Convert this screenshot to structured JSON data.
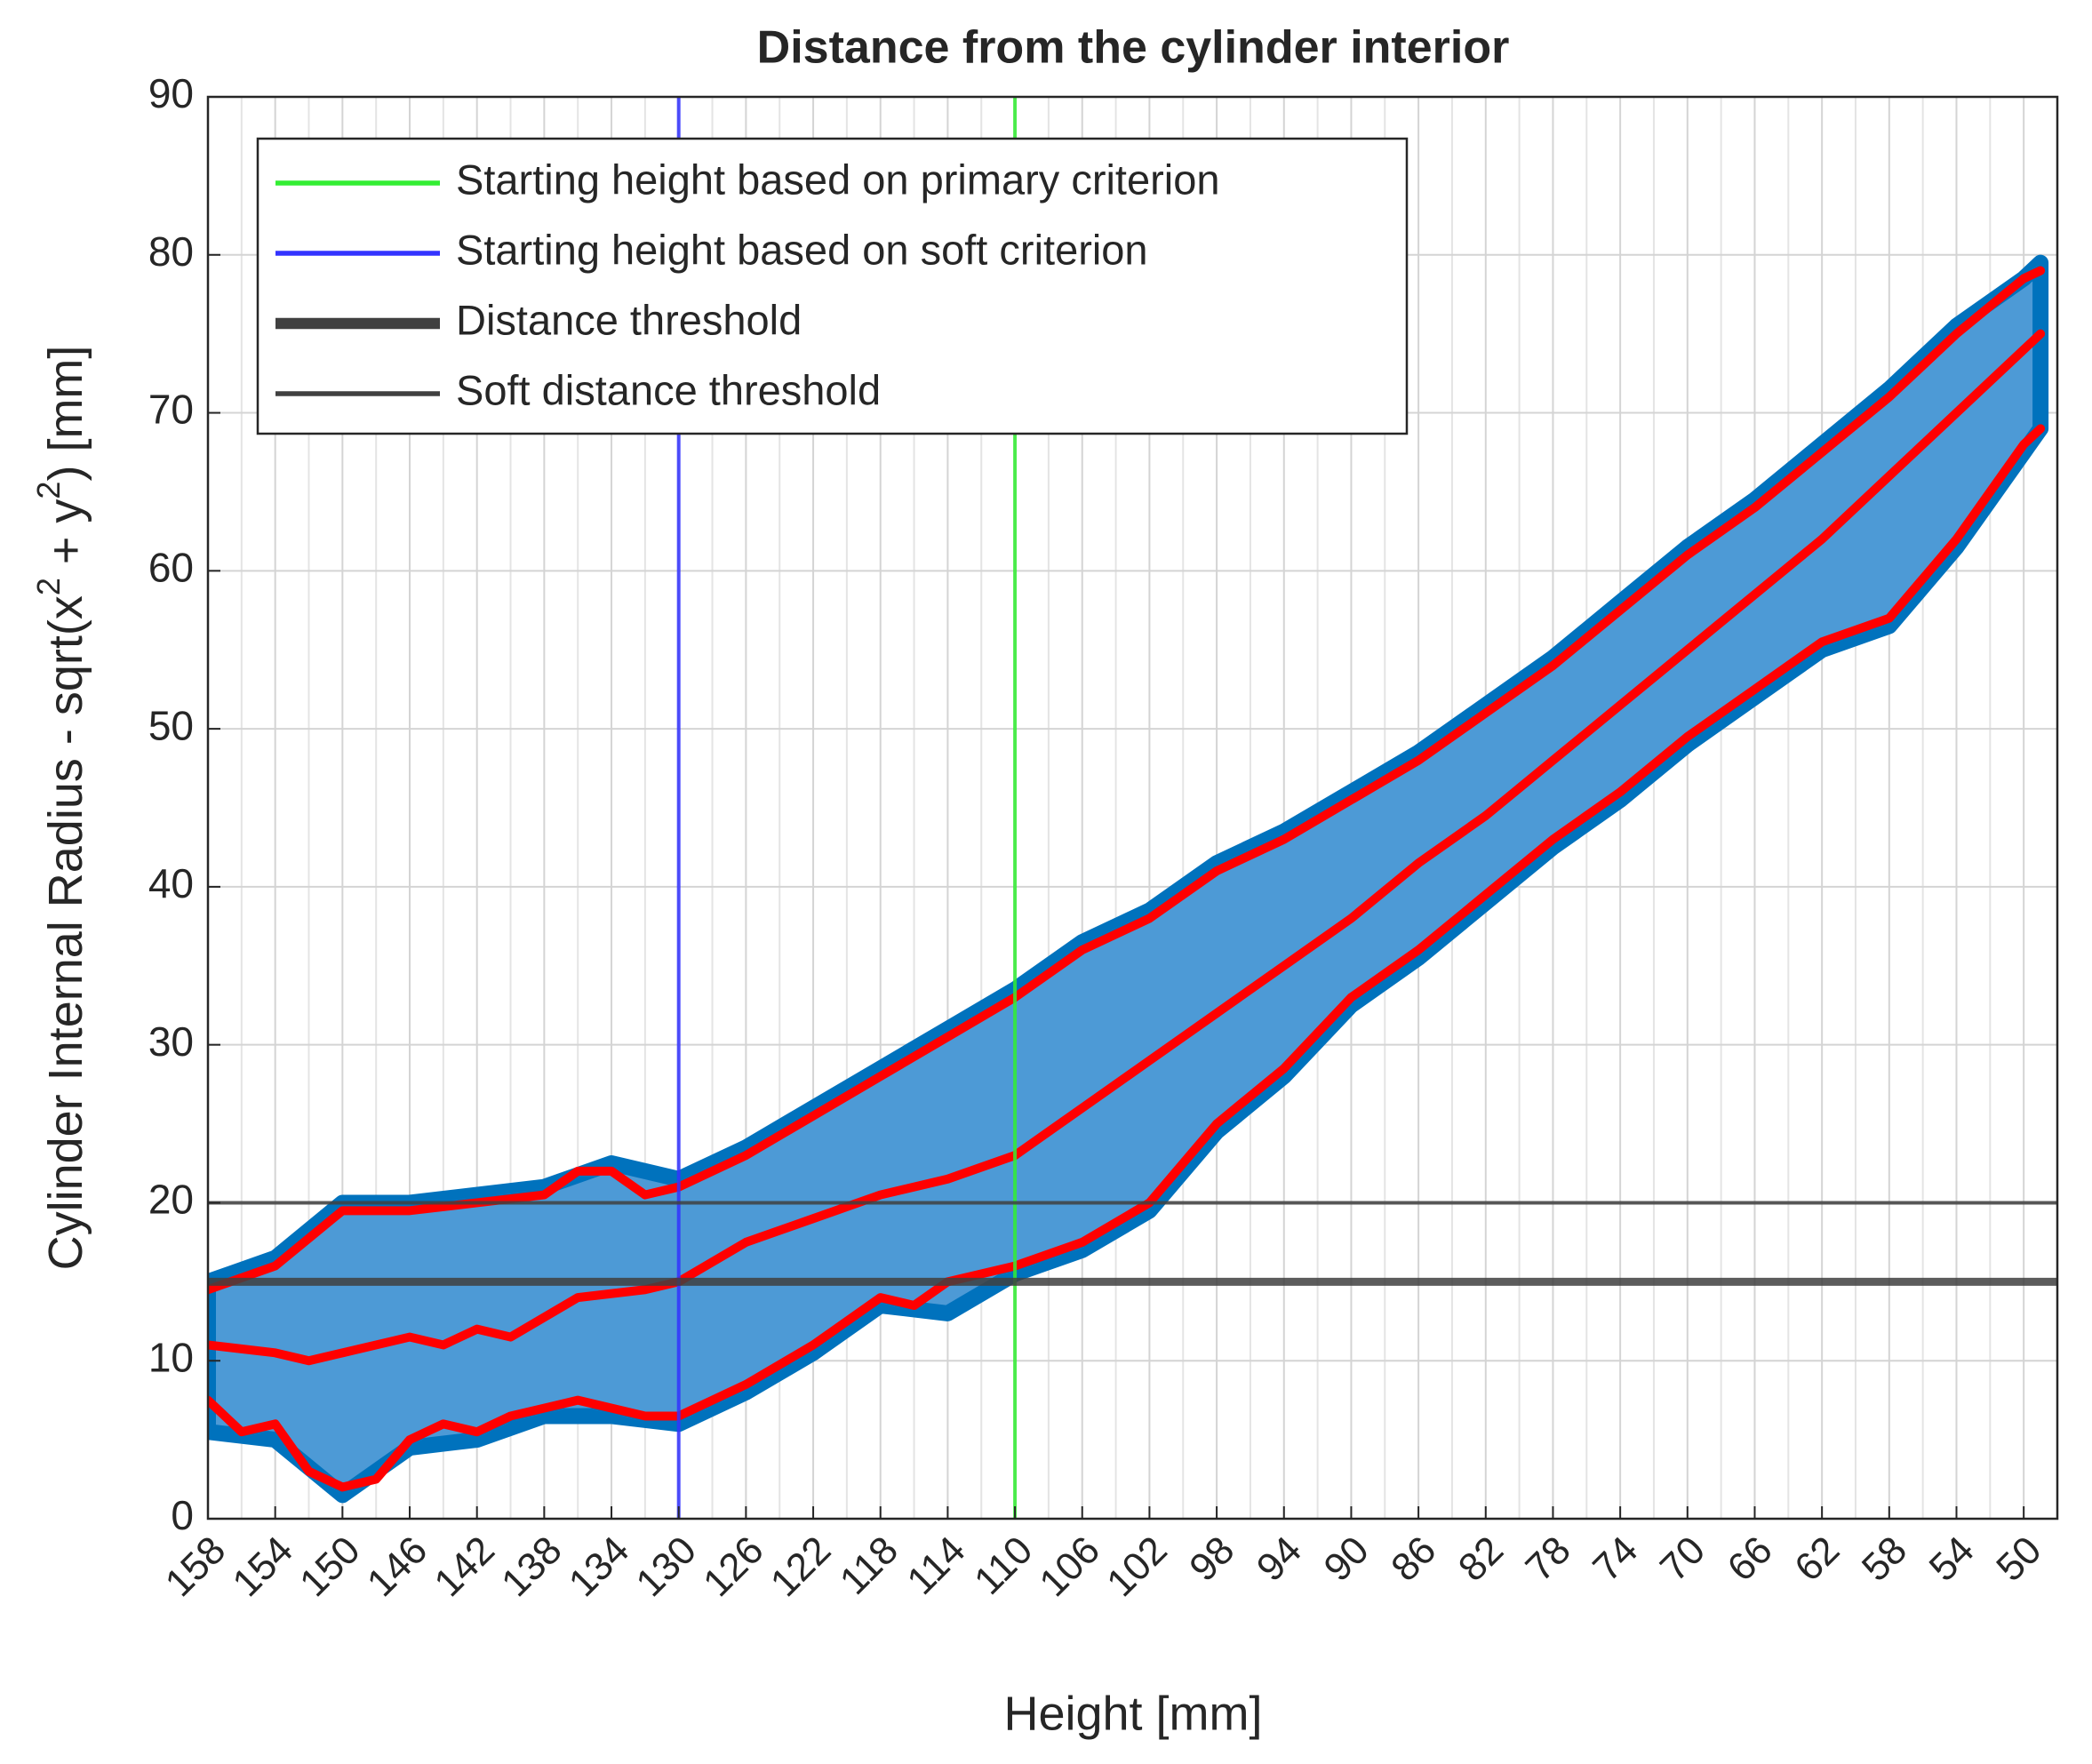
{
  "chart_data": {
    "type": "scatter",
    "title": "Distance from the cylinder interior",
    "xlabel": "Height [mm]",
    "ylabel_parts": [
      "Cylinder Internal Radius - sqrt(x",
      "2",
      " + y",
      "2",
      ") [mm]"
    ],
    "xlim": [
      158,
      48
    ],
    "ylim": [
      0,
      90
    ],
    "xticks": [
      158,
      154,
      150,
      146,
      142,
      138,
      134,
      130,
      126,
      122,
      118,
      114,
      110,
      106,
      102,
      98,
      94,
      90,
      86,
      82,
      78,
      74,
      70,
      66,
      62,
      58,
      54,
      50
    ],
    "yticks": [
      0,
      10,
      20,
      30,
      40,
      50,
      60,
      70,
      80,
      90
    ],
    "grid": true,
    "minor_grid_x": true,
    "legend": "northwest",
    "band": {
      "color": "#0072bd",
      "x": [
        158,
        154,
        150,
        146,
        142,
        138,
        134,
        130,
        126,
        122,
        118,
        114,
        110,
        106,
        102,
        98,
        94,
        90,
        86,
        82,
        78,
        74,
        70,
        66,
        62,
        58,
        54,
        50,
        49
      ],
      "lower": [
        5.5,
        5,
        1.5,
        4.5,
        5,
        6.5,
        6.5,
        6,
        8,
        10.5,
        13.5,
        13,
        15.5,
        17,
        19.5,
        24.5,
        28,
        32.5,
        35.5,
        39,
        42.5,
        45.5,
        49,
        52,
        55,
        56.5,
        61.5,
        67.5,
        69
      ],
      "upper": [
        15,
        16.5,
        20,
        20,
        20.5,
        21,
        22.5,
        21.5,
        23.5,
        26,
        28.5,
        31,
        33.5,
        36.5,
        38.5,
        41.5,
        43.5,
        46,
        48.5,
        51.5,
        54.5,
        58,
        61.5,
        64.5,
        68,
        71.5,
        75.5,
        78.5,
        79.5
      ]
    },
    "series": [
      {
        "color": "#ff0000",
        "x": [
          158,
          154,
          150,
          146,
          142,
          138,
          136,
          134,
          132,
          130,
          126,
          122,
          118,
          114,
          110,
          106,
          102,
          98,
          94,
          90,
          86,
          82,
          78,
          74,
          70,
          66,
          62,
          58,
          54,
          50,
          49
        ],
        "values": [
          14.5,
          16,
          19.5,
          19.5,
          20,
          20.5,
          22,
          22,
          20.5,
          21,
          23,
          25.5,
          28,
          30.5,
          33,
          36,
          38,
          41,
          43,
          45.5,
          48,
          51,
          54,
          57.5,
          61,
          64,
          67.5,
          71,
          75,
          78.5,
          79
        ]
      },
      {
        "color": "#ff0000",
        "x": [
          158,
          154,
          152,
          150,
          146,
          144,
          142,
          140,
          136,
          132,
          130,
          126,
          122,
          118,
          114,
          110,
          106,
          102,
          98,
          94,
          90,
          86,
          82,
          78,
          74,
          70,
          66,
          62,
          58,
          54,
          50,
          49
        ],
        "values": [
          11,
          10.5,
          10,
          10.5,
          11.5,
          11,
          12,
          11.5,
          14,
          14.5,
          15,
          17.5,
          19,
          20.5,
          21.5,
          23,
          26,
          29,
          32,
          35,
          38,
          41.5,
          44.5,
          48,
          51.5,
          55,
          58.5,
          62,
          66,
          70,
          74,
          75
        ]
      },
      {
        "color": "#ff0000",
        "x": [
          158,
          156,
          154,
          152,
          150,
          148,
          146,
          144,
          142,
          140,
          138,
          136,
          132,
          130,
          126,
          122,
          118,
          116,
          114,
          110,
          106,
          102,
          98,
          94,
          90,
          86,
          82,
          78,
          74,
          70,
          66,
          62,
          58,
          54,
          52,
          50,
          49
        ],
        "values": [
          7.5,
          5.5,
          6,
          3,
          2,
          2.5,
          5,
          6,
          5.5,
          6.5,
          7,
          7.5,
          6.5,
          6.5,
          8.5,
          11,
          14,
          13.5,
          15,
          16,
          17.5,
          20,
          25,
          28.5,
          33,
          36,
          39.5,
          43,
          46,
          49.5,
          52.5,
          55.5,
          57,
          62,
          65,
          68,
          69
        ]
      }
    ],
    "reference_lines": [
      {
        "name": "Starting height based on primary criterion",
        "color": "#33ee33",
        "axis": "x",
        "value": 110,
        "style": "thin"
      },
      {
        "name": "Starting height based on soft criterion",
        "color": "#3333ff",
        "axis": "x",
        "value": 130,
        "style": "thin"
      },
      {
        "name": "Distance threshold",
        "color": "#404040",
        "axis": "y",
        "value": 15,
        "style": "thick"
      },
      {
        "name": "Soft distance threshold",
        "color": "#404040",
        "axis": "y",
        "value": 20,
        "style": "thin"
      }
    ]
  }
}
